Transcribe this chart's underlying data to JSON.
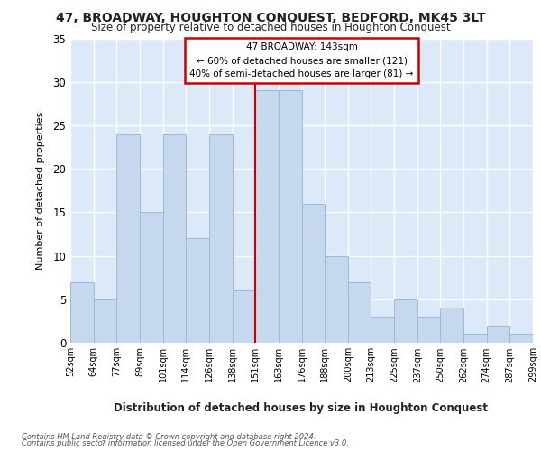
{
  "title": "47, BROADWAY, HOUGHTON CONQUEST, BEDFORD, MK45 3LT",
  "subtitle": "Size of property relative to detached houses in Houghton Conquest",
  "xlabel": "Distribution of detached houses by size in Houghton Conquest",
  "ylabel": "Number of detached properties",
  "bin_labels": [
    "52sqm",
    "64sqm",
    "77sqm",
    "89sqm",
    "101sqm",
    "114sqm",
    "126sqm",
    "138sqm",
    "151sqm",
    "163sqm",
    "176sqm",
    "188sqm",
    "200sqm",
    "213sqm",
    "225sqm",
    "237sqm",
    "250sqm",
    "262sqm",
    "274sqm",
    "287sqm",
    "299sqm"
  ],
  "bar_values": [
    7,
    5,
    24,
    15,
    24,
    12,
    24,
    6,
    29,
    29,
    16,
    10,
    7,
    3,
    5,
    3,
    4,
    1,
    2,
    1
  ],
  "bar_color": "#c5d8ee",
  "bar_edge_color": "#9bbad8",
  "property_line_label": "47 BROADWAY: 143sqm",
  "annotation_line1": "← 60% of detached houses are smaller (121)",
  "annotation_line2": "40% of semi-detached houses are larger (81) →",
  "line_color": "#cc0000",
  "annotation_box_edge": "#cc0000",
  "ylim": [
    0,
    35
  ],
  "yticks": [
    0,
    5,
    10,
    15,
    20,
    25,
    30,
    35
  ],
  "background_color": "#dce9f8",
  "grid_color": "#ffffff",
  "fig_bg": "#ffffff",
  "footer1": "Contains HM Land Registry data © Crown copyright and database right 2024.",
  "footer2": "Contains public sector information licensed under the Open Government Licence v3.0."
}
